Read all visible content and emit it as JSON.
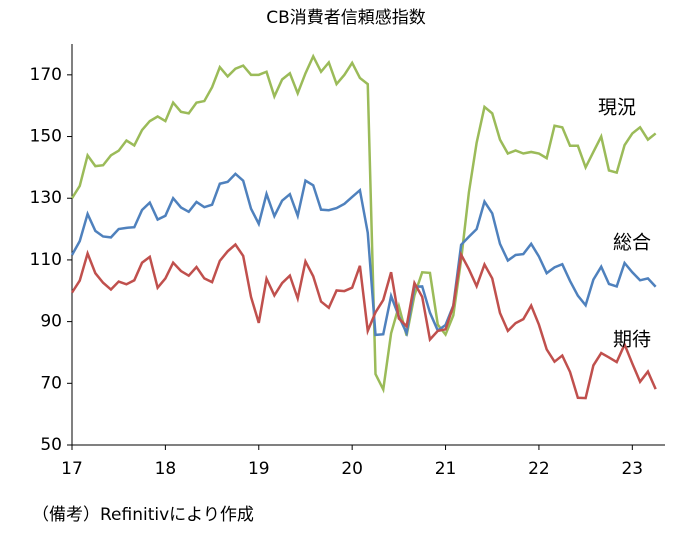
{
  "chart_data": {
    "type": "line",
    "title": "CB消費者信頼感指数",
    "note": "（備考）Refinitivにより作成",
    "x": [
      17,
      17.083,
      17.167,
      17.25,
      17.333,
      17.417,
      17.5,
      17.583,
      17.667,
      17.75,
      17.833,
      17.917,
      18,
      18.083,
      18.167,
      18.25,
      18.333,
      18.417,
      18.5,
      18.583,
      18.667,
      18.75,
      18.833,
      18.917,
      19,
      19.083,
      19.167,
      19.25,
      19.333,
      19.417,
      19.5,
      19.583,
      19.667,
      19.75,
      19.833,
      19.917,
      20,
      20.083,
      20.167,
      20.25,
      20.333,
      20.417,
      20.5,
      20.583,
      20.667,
      20.75,
      20.833,
      20.917,
      21,
      21.083,
      21.167,
      21.25,
      21.333,
      21.417,
      21.5,
      21.583,
      21.667,
      21.75,
      21.833,
      21.917,
      22,
      22.083,
      22.167,
      22.25,
      22.333,
      22.417,
      22.5,
      22.583,
      22.667,
      22.75,
      22.833,
      22.917,
      23,
      23.083,
      23.167,
      23.25
    ],
    "series": [
      {
        "name": "現況",
        "color": "#9bbb59",
        "values": [
          130,
          134,
          143.9,
          140.4,
          140.7,
          143.9,
          145.4,
          148.7,
          147.1,
          152.1,
          155,
          156.5,
          155,
          161,
          158,
          157.5,
          161,
          161.5,
          166,
          172.5,
          169.5,
          172,
          173,
          170,
          170,
          171,
          163,
          168.5,
          170.5,
          164,
          170.5,
          176,
          171,
          174,
          167,
          170,
          173.9,
          169,
          167,
          73,
          68,
          86.2,
          95,
          85.5,
          98.5,
          106,
          105.8,
          89,
          85.8,
          92,
          110.1,
          131.9,
          148,
          159.6,
          157.5,
          149,
          144.5,
          145.5,
          144.5,
          145,
          144.5,
          143,
          153.5,
          153,
          147,
          147,
          140,
          145,
          150,
          139,
          138.3,
          147.2,
          151,
          153,
          149,
          151
        ]
      },
      {
        "name": "総合",
        "color": "#4f81bd",
        "values": [
          111.6,
          116.1,
          124.9,
          119.4,
          117.6,
          117.3,
          120,
          120.4,
          120.6,
          126.2,
          128.6,
          123.1,
          124.3,
          130,
          127,
          125.6,
          128.8,
          127.1,
          127.9,
          134.7,
          135.3,
          137.9,
          135.7,
          126.6,
          121.7,
          131.4,
          124.2,
          129.2,
          131.3,
          124.3,
          135.7,
          134.2,
          126.3,
          126.1,
          126.8,
          128.2,
          130.4,
          132.6,
          118.8,
          85.7,
          85.9,
          98.3,
          91.7,
          86.3,
          101.3,
          101.4,
          92.9,
          87.1,
          88.9,
          95.2,
          114.9,
          117.5,
          120,
          128.9,
          125.1,
          115.2,
          109.8,
          111.6,
          111.9,
          115.2,
          111.1,
          105.7,
          107.6,
          108.6,
          103.2,
          98.4,
          95.3,
          103.6,
          107.8,
          102.2,
          101.4,
          109,
          106,
          103.4,
          104,
          101.3
        ]
      },
      {
        "name": "期待",
        "color": "#c0504d",
        "values": [
          99.4,
          103.3,
          112.1,
          105.7,
          102.6,
          100.4,
          103,
          102.1,
          103.4,
          109.1,
          111,
          101,
          104,
          109.1,
          106.4,
          104.9,
          107.7,
          104,
          102.8,
          109.7,
          112.8,
          115,
          111.3,
          98,
          89.6,
          103.9,
          98.5,
          102.5,
          104.9,
          97.5,
          109.5,
          104.7,
          96.5,
          94.5,
          100.1,
          99.9,
          101,
          108.1,
          87,
          93,
          97,
          106,
          91,
          88.5,
          102.5,
          98,
          84.2,
          87,
          87.5,
          95,
          111.7,
          107,
          101.5,
          108.5,
          104,
          92.8,
          87,
          89.5,
          90.8,
          95.2,
          89,
          81,
          77,
          79,
          73.7,
          65.3,
          65.2,
          75.8,
          79.8,
          78.4,
          76.9,
          82.6,
          76.4,
          70.5,
          73.8,
          68.1
        ]
      }
    ],
    "xlim": [
      17,
      23.35
    ],
    "xticks": [
      17,
      18,
      19,
      20,
      21,
      22,
      23
    ],
    "ylim": [
      50,
      180
    ],
    "yticks": [
      50,
      70,
      90,
      110,
      130,
      150,
      170
    ]
  }
}
